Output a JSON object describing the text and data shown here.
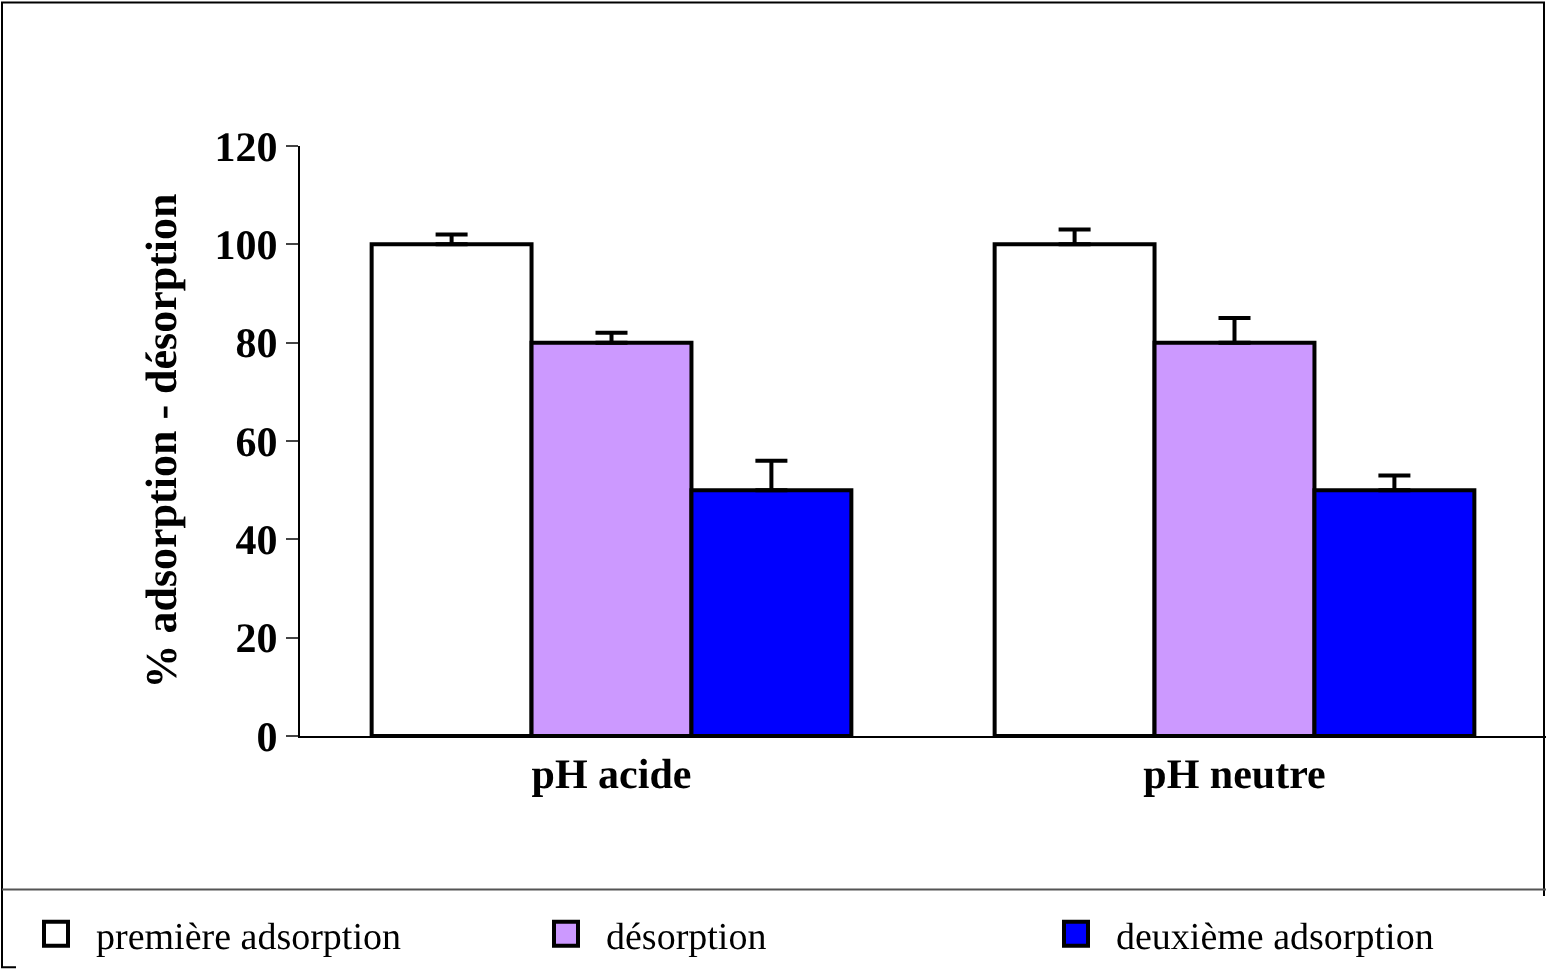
{
  "chart_data": {
    "type": "bar",
    "ylabel": "% adsorption - désorption",
    "categories": [
      "pH acide",
      "pH neutre"
    ],
    "series": [
      {
        "name": "première adsorption",
        "color": "#ffffff",
        "values": [
          100,
          100
        ],
        "errors": [
          [
            100,
            102
          ],
          [
            100,
            103
          ]
        ]
      },
      {
        "name": "désorption",
        "color": "#cc99ff",
        "values": [
          80,
          80
        ],
        "errors": [
          [
            80,
            82
          ],
          [
            80,
            85
          ]
        ]
      },
      {
        "name": "deuxième adsorption",
        "color": "#0000ff",
        "values": [
          50,
          50
        ],
        "errors": [
          [
            50,
            56
          ],
          [
            50,
            53
          ]
        ]
      }
    ],
    "ylim": [
      0,
      120
    ],
    "yticks": [
      0,
      20,
      40,
      60,
      80,
      100,
      120
    ],
    "legend": "bottom"
  }
}
